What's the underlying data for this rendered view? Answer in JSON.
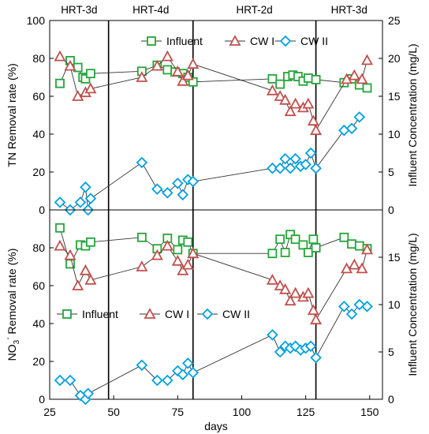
{
  "chart_data": [
    {
      "type": "line",
      "ylabel": "TN Removal rate (%)",
      "y2label": "Influent Concentration (mg/L)",
      "xlim": [
        25,
        155
      ],
      "ylim": [
        0,
        100
      ],
      "y2lim": [
        0,
        25
      ],
      "yticks": [
        0,
        20,
        40,
        60,
        80,
        100
      ],
      "y2ticks": [
        0,
        5,
        10,
        15,
        20,
        25
      ],
      "phases": [
        {
          "label": "HRT-3d",
          "start": 25,
          "end": 48
        },
        {
          "label": "HRT-4d",
          "start": 48,
          "end": 81
        },
        {
          "label": "HRT-2d",
          "start": 81,
          "end": 129
        },
        {
          "label": "HRT-3d",
          "start": 129,
          "end": 155
        }
      ],
      "legend": {
        "position": "top-right",
        "entries": [
          "Influent",
          "CW I",
          "CW II"
        ]
      },
      "series": [
        {
          "name": "Influent",
          "axis": "right",
          "marker": "square",
          "color": "#22a63a",
          "x": [
            29,
            33,
            36,
            38,
            39,
            41,
            61,
            67,
            71,
            74,
            77,
            79,
            81,
            112,
            115,
            118,
            120,
            122,
            124,
            126,
            129,
            140,
            143,
            146,
            149
          ],
          "y": [
            16.7,
            19.7,
            18.8,
            17.5,
            17.3,
            18.0,
            18.3,
            19.1,
            18.5,
            18.2,
            18.0,
            17.5,
            16.9,
            17.3,
            16.6,
            17.6,
            17.8,
            17.6,
            17.0,
            17.4,
            17.2,
            16.8,
            17.3,
            16.5,
            16.1
          ]
        },
        {
          "name": "CW I",
          "axis": "left",
          "marker": "triangle",
          "color": "#c0504d",
          "x": [
            29,
            33,
            36,
            39,
            41,
            61,
            67,
            71,
            75,
            77,
            79,
            81,
            112,
            115,
            117,
            119,
            121,
            124,
            126,
            128,
            129,
            141,
            144,
            147,
            149
          ],
          "y": [
            81,
            76,
            60,
            62,
            64,
            70,
            76,
            81,
            73,
            68,
            71,
            77,
            63,
            60,
            58,
            52,
            56,
            54,
            56,
            47,
            42,
            69,
            71,
            69,
            79
          ]
        },
        {
          "name": "CW II",
          "axis": "left",
          "marker": "diamond",
          "color": "#00a0e0",
          "x": [
            29,
            33,
            37,
            39,
            40,
            41,
            61,
            67,
            71,
            75,
            77,
            79,
            81,
            112,
            115,
            117,
            119,
            121,
            123,
            125,
            127,
            129,
            140,
            143,
            146
          ],
          "y": [
            4,
            0,
            4,
            12,
            0,
            6,
            25,
            11,
            9,
            14,
            8,
            16,
            15,
            22,
            22,
            27,
            22,
            27,
            23,
            24,
            30,
            22,
            42,
            43,
            49
          ]
        }
      ]
    },
    {
      "type": "line",
      "xlabel": "days",
      "ylabel": "NO₃⁻ Removal rate (%)",
      "ylabel_main": "NO",
      "ylabel_sub": "3",
      "ylabel_sup": "-",
      "ylabel_rest": " Removal rate (%)",
      "y2label": "Influent Concentration (mg/L)",
      "xlim": [
        25,
        155
      ],
      "ylim": [
        0,
        100
      ],
      "y2lim": [
        0,
        20
      ],
      "xticks": [
        25,
        50,
        75,
        100,
        125,
        150
      ],
      "yticks": [
        0,
        20,
        40,
        60,
        80,
        100
      ],
      "y2ticks": [
        0,
        5,
        10,
        15,
        20
      ],
      "legend": {
        "position": "center",
        "entries": [
          "Influent",
          "CW I",
          "CW II"
        ]
      },
      "series": [
        {
          "name": "Influent",
          "axis": "right",
          "marker": "square",
          "color": "#22a63a",
          "x": [
            29,
            33,
            37,
            39,
            41,
            61,
            67,
            71,
            75,
            77,
            79,
            81,
            112,
            115,
            117,
            119,
            121,
            124,
            126,
            128,
            129,
            140,
            143,
            146,
            149
          ],
          "y": [
            18.1,
            14.3,
            16.3,
            16.2,
            16.6,
            17.1,
            15.9,
            17.0,
            15.8,
            16.8,
            16.6,
            15.4,
            15.4,
            16.9,
            15.5,
            17.4,
            16.9,
            16.3,
            15.5,
            16.9,
            16.0,
            17.1,
            16.4,
            16.2,
            15.9
          ]
        },
        {
          "name": "CW I",
          "axis": "left",
          "marker": "triangle",
          "color": "#c0504d",
          "x": [
            29,
            33,
            36,
            39,
            41,
            61,
            67,
            71,
            75,
            77,
            79,
            81,
            112,
            115,
            117,
            119,
            121,
            124,
            126,
            128,
            129,
            141,
            144,
            147,
            149
          ],
          "y": [
            81,
            76,
            60,
            68,
            63,
            70,
            76,
            81,
            73,
            68,
            71,
            77,
            63,
            60,
            58,
            52,
            56,
            54,
            56,
            47,
            42,
            69,
            71,
            69,
            79
          ]
        },
        {
          "name": "CW II",
          "axis": "left",
          "marker": "diamond",
          "color": "#00a0e0",
          "x": [
            29,
            33,
            37,
            39,
            40,
            61,
            67,
            71,
            75,
            77,
            79,
            81,
            112,
            115,
            117,
            119,
            121,
            123,
            125,
            127,
            129,
            140,
            143,
            146,
            149
          ],
          "y": [
            10,
            10,
            2,
            0,
            3,
            18,
            10,
            10,
            15,
            13,
            19,
            14,
            34,
            25,
            28,
            27,
            28,
            26,
            27,
            28,
            22,
            49,
            45,
            50,
            49
          ]
        }
      ]
    }
  ]
}
